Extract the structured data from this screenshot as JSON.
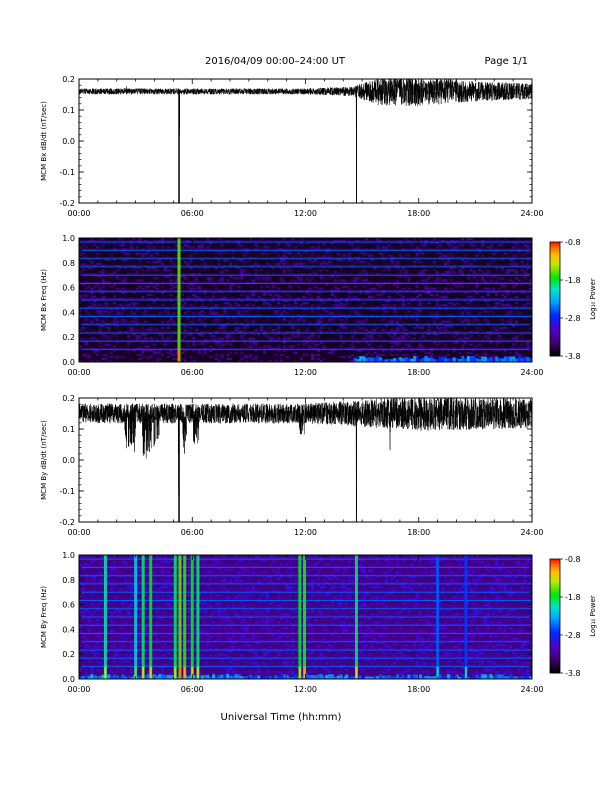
{
  "header": {
    "title": "2016/04/09   00:00–24:00 UT",
    "page": "Page 1/1"
  },
  "chart_data": [
    {
      "type": "line",
      "ylabel": "MCM Bx dB/dt (nT/sec)",
      "xlim": [
        0,
        24
      ],
      "ylim": [
        -0.2,
        0.2
      ],
      "x_tick_labels": [
        "00:00",
        "06:00",
        "12:00",
        "18:00",
        "24:00"
      ],
      "y_ticks": [
        0.2,
        0.1,
        0.0,
        -0.1,
        -0.2
      ],
      "y_tick_labels": [
        "0.2",
        "0.1",
        "0.0",
        "-0.1",
        "-0.2"
      ],
      "baseline": 0.16,
      "noise_profile": [
        [
          0,
          0.006
        ],
        [
          12,
          0.006
        ],
        [
          14.5,
          0.01
        ],
        [
          16,
          0.03
        ],
        [
          18,
          0.03
        ],
        [
          21,
          0.02
        ],
        [
          24,
          0.016
        ]
      ],
      "spikes": [
        {
          "x": 5.3,
          "y": -0.2,
          "width_hours": 0.08
        },
        {
          "x": 14.7,
          "y": -0.2,
          "width_hours": 0.02
        },
        {
          "x": 2.5,
          "y": 0.185,
          "width_hours": 0.01
        },
        {
          "x": 17.0,
          "y": 0.2,
          "width_hours": 0.5
        },
        {
          "x": 19.6,
          "y": 0.2,
          "width_hours": 0.4
        }
      ]
    },
    {
      "type": "heatmap",
      "ylabel": "MCM Bx Freq (Hz)",
      "xlim": [
        0,
        24
      ],
      "ylim": [
        0,
        1.0
      ],
      "x_tick_labels": [
        "00:00",
        "06:00",
        "12:00",
        "18:00",
        "24:00"
      ],
      "y_ticks": [
        0.0,
        0.2,
        0.4,
        0.6,
        0.8,
        1.0
      ],
      "y_tick_labels": [
        "0.0",
        "0.2",
        "0.4",
        "0.6",
        "0.8",
        "1.0"
      ],
      "harmonic_lines_hz": [
        0.1,
        0.167,
        0.233,
        0.3,
        0.367,
        0.433,
        0.5,
        0.567,
        0.633,
        0.7,
        0.767,
        0.833,
        0.9,
        0.967
      ],
      "vertical_bursts": [
        {
          "x": 5.3,
          "power": -1.6
        }
      ],
      "low_freq_enhancement": {
        "from": 14.5,
        "to": 24,
        "max_hz": 0.05
      },
      "background_power": -3.6,
      "colorbar": {
        "label": "Log₁₀ Power",
        "range": [
          -3.8,
          -0.8
        ],
        "tick_labels": [
          "-0.8",
          "-1.8",
          "-2.8",
          "-3.8"
        ]
      }
    },
    {
      "type": "line",
      "ylabel": "MCM By dB/dt (nT/sec)",
      "xlim": [
        0,
        24
      ],
      "ylim": [
        -0.2,
        0.2
      ],
      "x_tick_labels": [
        "00:00",
        "06:00",
        "12:00",
        "18:00",
        "24:00"
      ],
      "y_ticks": [
        0.2,
        0.1,
        0.0,
        -0.1,
        -0.2
      ],
      "y_tick_labels": [
        "0.2",
        "0.1",
        "0.0",
        "-0.1",
        "-0.2"
      ],
      "baseline": 0.15,
      "noise_profile": [
        [
          0,
          0.02
        ],
        [
          12,
          0.02
        ],
        [
          14,
          0.025
        ],
        [
          18,
          0.035
        ],
        [
          24,
          0.03
        ]
      ],
      "spikes": [
        {
          "x": 2.7,
          "y": 0.02,
          "width_hours": 0.6
        },
        {
          "x": 3.6,
          "y": 0.0,
          "width_hours": 0.5
        },
        {
          "x": 4.1,
          "y": 0.04,
          "width_hours": 0.3
        },
        {
          "x": 5.3,
          "y": -0.2,
          "width_hours": 0.08
        },
        {
          "x": 5.6,
          "y": 0.02,
          "width_hours": 0.2
        },
        {
          "x": 6.2,
          "y": 0.05,
          "width_hours": 0.3
        },
        {
          "x": 11.8,
          "y": 0.08,
          "width_hours": 0.3
        },
        {
          "x": 14.7,
          "y": -0.2,
          "width_hours": 0.02
        },
        {
          "x": 16.5,
          "y": 0.02,
          "width_hours": 0.1
        },
        {
          "x": 1.0,
          "y": 0.12,
          "width_hours": 0.2
        }
      ]
    },
    {
      "type": "heatmap",
      "ylabel": "MCM By Freq (Hz)",
      "xlim": [
        0,
        24
      ],
      "ylim": [
        0,
        1.0
      ],
      "x_tick_labels": [
        "00:00",
        "06:00",
        "12:00",
        "18:00",
        "24:00"
      ],
      "y_ticks": [
        0.0,
        0.2,
        0.4,
        0.6,
        0.8,
        1.0
      ],
      "y_tick_labels": [
        "0.0",
        "0.2",
        "0.4",
        "0.6",
        "0.8",
        "1.0"
      ],
      "harmonic_lines_hz": [
        0.1,
        0.167,
        0.233,
        0.3,
        0.367,
        0.433,
        0.5,
        0.567,
        0.633,
        0.7,
        0.767,
        0.833,
        0.9,
        0.967
      ],
      "vertical_bursts": [
        {
          "x": 1.4,
          "power": -2.0
        },
        {
          "x": 3.0,
          "power": -2.2
        },
        {
          "x": 3.4,
          "power": -1.9
        },
        {
          "x": 3.8,
          "power": -1.8
        },
        {
          "x": 5.1,
          "power": -1.9
        },
        {
          "x": 5.35,
          "power": -1.6
        },
        {
          "x": 5.6,
          "power": -1.7
        },
        {
          "x": 6.0,
          "power": -1.8
        },
        {
          "x": 6.3,
          "power": -1.9
        },
        {
          "x": 11.7,
          "power": -1.8
        },
        {
          "x": 11.95,
          "power": -1.7
        },
        {
          "x": 14.7,
          "power": -1.9
        },
        {
          "x": 19.0,
          "power": -2.6
        },
        {
          "x": 20.5,
          "power": -2.7
        }
      ],
      "low_freq_enhancement": {
        "from": 0,
        "to": 24,
        "max_hz": 0.04
      },
      "background_power": -3.3,
      "colorbar": {
        "label": "Log₁₀ Power",
        "range": [
          -3.8,
          -0.8
        ],
        "tick_labels": [
          "-0.8",
          "-1.8",
          "-2.8",
          "-3.8"
        ]
      }
    }
  ],
  "footer": {
    "xlabel": "Universal Time (hh:mm)"
  }
}
